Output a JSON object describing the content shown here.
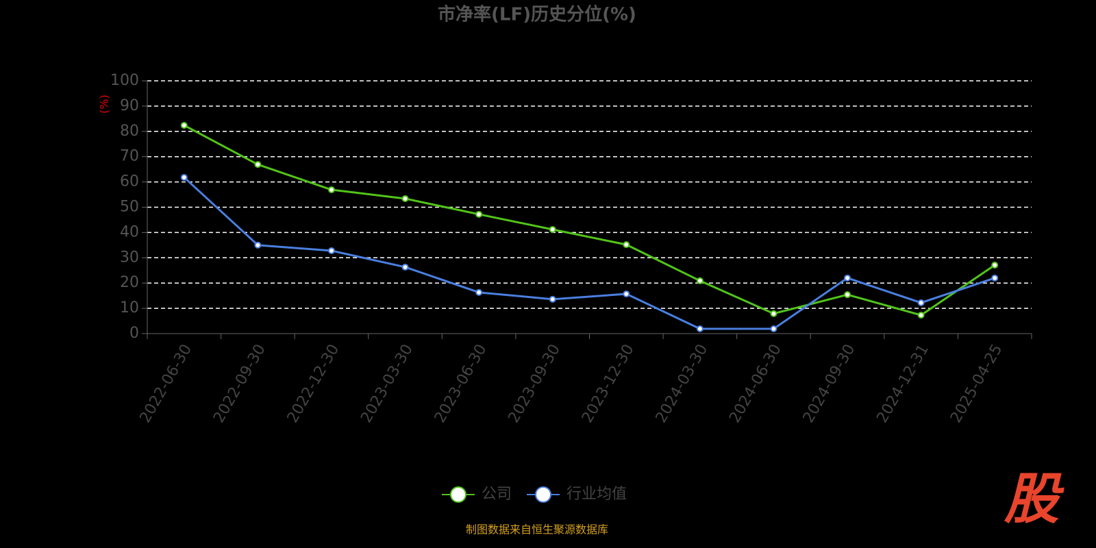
{
  "chart_data": {
    "type": "line",
    "title": "市净率(LF)历史分位(%)",
    "y_label": "(%)",
    "categories": [
      "2022-06-30",
      "2022-09-30",
      "2022-12-30",
      "2023-03-30",
      "2023-06-30",
      "2023-09-30",
      "2023-12-30",
      "2024-03-30",
      "2024-06-30",
      "2024-09-30",
      "2024-12-31",
      "2025-04-25"
    ],
    "series": [
      {
        "name": "公司",
        "color": "#52c41a",
        "values": [
          82.4,
          66.9,
          56.9,
          53.4,
          47.2,
          41.2,
          35.2,
          20.9,
          7.9,
          15.4,
          7.3,
          27.1
        ]
      },
      {
        "name": "行业均值",
        "color": "#4a7fe0",
        "values": [
          61.8,
          35.0,
          32.8,
          26.3,
          16.3,
          13.6,
          15.7,
          1.9,
          1.9,
          22.0,
          12.2,
          22.0
        ]
      }
    ],
    "ylim": [
      0,
      100
    ],
    "yticks": [
      0,
      10,
      20,
      30,
      40,
      50,
      60,
      70,
      80,
      90,
      100
    ],
    "grid": true,
    "legend": "bottom",
    "source": "制图数据来自恒生聚源数据库",
    "watermark": "股"
  }
}
